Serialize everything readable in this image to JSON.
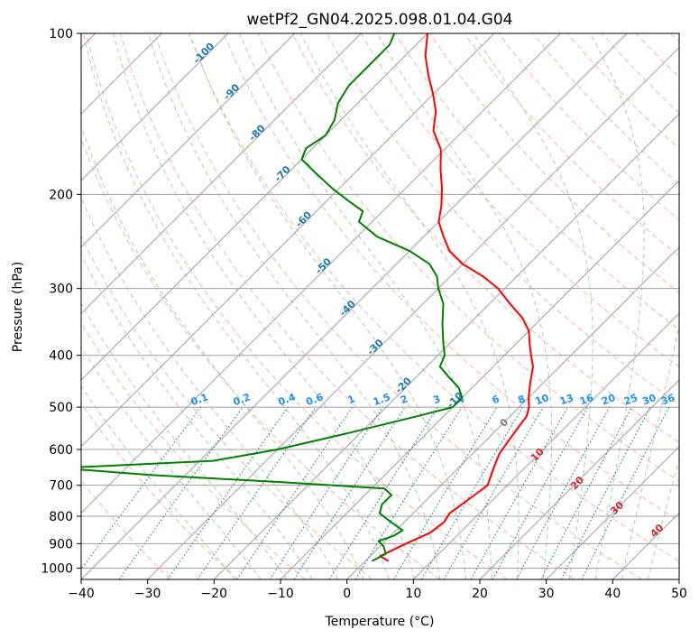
{
  "chart_data": {
    "type": "line",
    "subtype": "skew-t log-p diagram",
    "title": "wetPf2_GN04.2025.098.01.04.G04",
    "xlabel": "Temperature (°C)",
    "ylabel": "Pressure (hPa)",
    "xlim": [
      -40,
      50
    ],
    "ylim": [
      1050,
      100
    ],
    "y_scale": "log",
    "grid": true,
    "x_ticks": [
      -40,
      -30,
      -20,
      -10,
      0,
      10,
      20,
      30,
      40,
      50
    ],
    "y_ticks": [
      100,
      200,
      300,
      400,
      500,
      600,
      700,
      800,
      900,
      1000
    ],
    "series": [
      {
        "role": "temperature",
        "color": "#ff0000",
        "points": [
          [
            3.5,
            970
          ],
          [
            1.5,
            950
          ],
          [
            3.5,
            900
          ],
          [
            5.5,
            860
          ],
          [
            6.0,
            820
          ],
          [
            5.5,
            790
          ],
          [
            6.0,
            760
          ],
          [
            6.5,
            730
          ],
          [
            7.0,
            700
          ],
          [
            6.0,
            670
          ],
          [
            5.0,
            640
          ],
          [
            4.0,
            610
          ],
          [
            3.5,
            580
          ],
          [
            3.0,
            550
          ],
          [
            2.5,
            520
          ],
          [
            1.5,
            500
          ],
          [
            0.0,
            480
          ],
          [
            -2.0,
            450
          ],
          [
            -4.0,
            420
          ],
          [
            -6.0,
            400
          ],
          [
            -8.0,
            380
          ],
          [
            -10.0,
            360
          ],
          [
            -13.0,
            340
          ],
          [
            -17.0,
            320
          ],
          [
            -21.0,
            300
          ],
          [
            -25.0,
            285
          ],
          [
            -30.0,
            270
          ],
          [
            -34.0,
            255
          ],
          [
            -37.0,
            240
          ],
          [
            -40.0,
            225
          ],
          [
            -42.0,
            210
          ],
          [
            -44.5,
            195
          ],
          [
            -47.5,
            180
          ],
          [
            -50.5,
            165
          ],
          [
            -54.5,
            152
          ],
          [
            -57.0,
            140
          ],
          [
            -60.0,
            130
          ],
          [
            -63.5,
            120
          ],
          [
            -67.0,
            110
          ],
          [
            -70.0,
            100
          ]
        ]
      },
      {
        "role": "dewpoint",
        "color": "#008000",
        "points": [
          [
            1.0,
            970
          ],
          [
            2.0,
            940
          ],
          [
            0.5,
            910
          ],
          [
            -1.0,
            890
          ],
          [
            0.5,
            870
          ],
          [
            1.0,
            850
          ],
          [
            -2.0,
            820
          ],
          [
            -5.0,
            790
          ],
          [
            -6.0,
            760
          ],
          [
            -6.0,
            730
          ],
          [
            -8.0,
            710
          ],
          [
            -25.0,
            690
          ],
          [
            -45.0,
            670
          ],
          [
            -60.0,
            650
          ],
          [
            -38.0,
            630
          ],
          [
            -30.0,
            600
          ],
          [
            -22.0,
            560
          ],
          [
            -14.0,
            520
          ],
          [
            -10.0,
            500
          ],
          [
            -10.0,
            480
          ],
          [
            -12.0,
            460
          ],
          [
            -15.0,
            440
          ],
          [
            -18.0,
            420
          ],
          [
            -19.0,
            400
          ],
          [
            -21.0,
            380
          ],
          [
            -24.0,
            350
          ],
          [
            -27.0,
            320
          ],
          [
            -30.0,
            300
          ],
          [
            -32.0,
            285
          ],
          [
            -35.0,
            270
          ],
          [
            -40.0,
            255
          ],
          [
            -47.0,
            240
          ],
          [
            -52.0,
            225
          ],
          [
            -53.0,
            215
          ],
          [
            -57.0,
            205
          ],
          [
            -61.0,
            195
          ],
          [
            -66.0,
            182
          ],
          [
            -70.0,
            172
          ],
          [
            -71.0,
            164
          ],
          [
            -70.0,
            155
          ],
          [
            -71.0,
            145
          ],
          [
            -73.0,
            135
          ],
          [
            -74.0,
            125
          ],
          [
            -74.0,
            115
          ],
          [
            -74.0,
            105
          ],
          [
            -75.0,
            100
          ]
        ]
      }
    ],
    "isotherm_labels": [
      "-100",
      "-90",
      "-80",
      "-70",
      "-60",
      "-50",
      "-40",
      "-30",
      "-20",
      "-10"
    ],
    "moist_adiabat_labels": [
      "0",
      "10",
      "20",
      "30",
      "40"
    ],
    "mixing_ratio_labels": [
      "0.1",
      "0.2",
      "0.4",
      "0.6",
      "1",
      "1.5",
      "2",
      "3",
      "4",
      "6",
      "8",
      "10",
      "13",
      "16",
      "20",
      "25",
      "30",
      "36"
    ],
    "colors": {
      "temperature": "#ff0000",
      "dewpoint": "#008000",
      "isotherm_grid": "#a0a0a0",
      "dry_adiabat": "#f4a582",
      "moist_adiabat": "#92c592",
      "mixing_ratio": "#1f77b4",
      "isotherm_label": "#1f77b4",
      "mixing_label": "#1e90ff",
      "moist_label": "#d62728"
    }
  }
}
